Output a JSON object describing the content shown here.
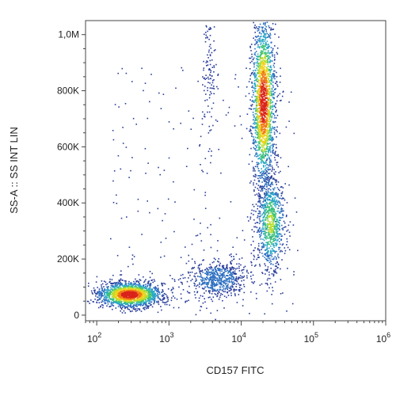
{
  "chart_data": {
    "type": "scatter",
    "subtype": "flow-cytometry-density-plot",
    "title": "",
    "xlabel": "CD157 FITC",
    "ylabel": "SS-A :: SS INT LIN",
    "x_scale": "log",
    "y_scale": "linear",
    "xlim": [
      70,
      1000000
    ],
    "ylim": [
      -20000,
      1050000
    ],
    "x_ticks": [
      {
        "value": 100,
        "base": "10",
        "exp": "2"
      },
      {
        "value": 1000,
        "base": "10",
        "exp": "3"
      },
      {
        "value": 10000,
        "base": "10",
        "exp": "4"
      },
      {
        "value": 100000,
        "base": "10",
        "exp": "5"
      },
      {
        "value": 1000000,
        "base": "10",
        "exp": "6"
      }
    ],
    "y_ticks": [
      {
        "value": 0,
        "label": "0"
      },
      {
        "value": 200000,
        "label": "200K"
      },
      {
        "value": 400000,
        "label": "400K"
      },
      {
        "value": 600000,
        "label": "600K"
      },
      {
        "value": 800000,
        "label": "800K"
      },
      {
        "value": 1000000,
        "label": "1,0M"
      }
    ],
    "populations": [
      {
        "x_center": 280,
        "y_center": 75000,
        "x_spread_decades": 0.22,
        "y_spread": 22000,
        "density": "high"
      },
      {
        "x_center": 4500,
        "y_center": 130000,
        "x_spread_decades": 0.22,
        "y_spread": 35000,
        "density": "low"
      },
      {
        "x_center": 20000,
        "y_center": 760000,
        "x_spread_decades": 0.08,
        "y_spread": 150000,
        "density": "high"
      },
      {
        "x_center": 25000,
        "y_center": 330000,
        "x_spread_decades": 0.1,
        "y_spread": 90000,
        "density": "medium"
      },
      {
        "x_center": 3500,
        "y_center": 880000,
        "x_spread_decades": 0.05,
        "y_spread": 150000,
        "density": "sparse"
      }
    ],
    "colormap": [
      "#2a3d9a",
      "#2c6fc0",
      "#2aa8c6",
      "#3cc27a",
      "#b9dc2e",
      "#f2d21b",
      "#f07a16",
      "#d9231c"
    ],
    "grid": false,
    "legend": "none"
  }
}
